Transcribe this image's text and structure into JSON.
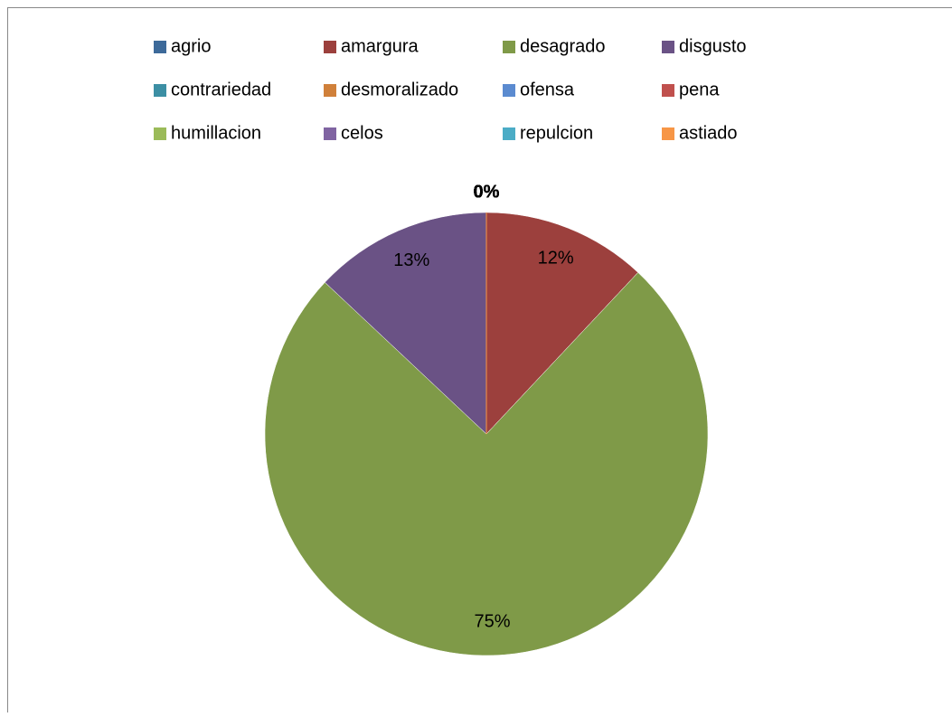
{
  "chart_data": {
    "type": "pie",
    "categories": [
      "agrio",
      "amargura",
      "desagrado",
      "disgusto",
      "contrariedad",
      "desmoralizado",
      "ofensa",
      "pena",
      "humillacion",
      "celos",
      "repulcion",
      "astiado"
    ],
    "values": [
      0,
      12,
      75,
      13,
      0,
      0,
      0,
      0,
      0,
      0,
      0,
      0
    ],
    "value_labels": [
      "0%",
      "12%",
      "75%",
      "13%",
      "0%",
      "0%",
      "0%",
      "0%",
      "0%",
      "0%",
      "0%",
      "0%"
    ],
    "colors": [
      "#3d6a9a",
      "#9c403d",
      "#7f9a48",
      "#6a5285",
      "#3c8fa4",
      "#d0803a",
      "#5b8bd0",
      "#c0504d",
      "#9bbb59",
      "#8064a2",
      "#4bacc6",
      "#f79646"
    ],
    "legend": "top"
  }
}
